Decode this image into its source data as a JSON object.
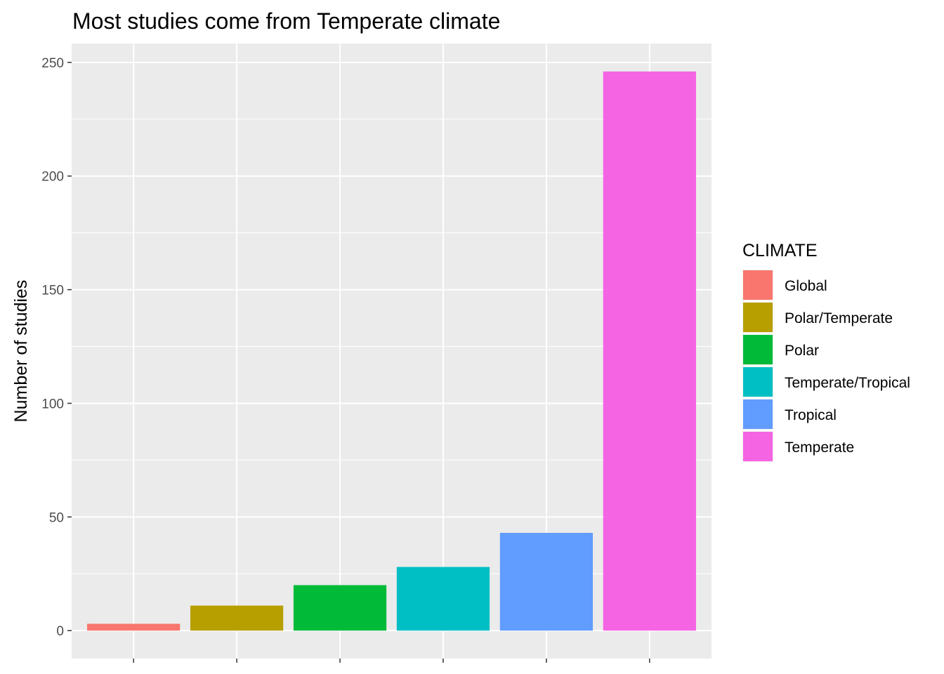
{
  "chart_data": {
    "type": "bar",
    "title": "Most studies come from Temperate climate",
    "xlabel": "",
    "ylabel": "Number of studies",
    "categories": [
      "Global",
      "Polar/Temperate",
      "Polar",
      "Temperate/Tropical",
      "Tropical",
      "Temperate"
    ],
    "values": [
      3,
      11,
      20,
      28,
      43,
      246
    ],
    "colors": [
      "#F8766D",
      "#B79F00",
      "#00BA38",
      "#00BFC4",
      "#619CFF",
      "#F564E3"
    ],
    "y_ticks": [
      0,
      50,
      100,
      150,
      200,
      250
    ],
    "y_tick_labels": [
      "0",
      "50",
      "100",
      "150",
      "200",
      "250"
    ],
    "ylim": [
      -12.3,
      258.3
    ],
    "grid": true,
    "legend": {
      "title": "CLIMATE",
      "position": "right",
      "entries": [
        "Global",
        "Polar/Temperate",
        "Polar",
        "Temperate/Tropical",
        "Tropical",
        "Temperate"
      ]
    }
  }
}
